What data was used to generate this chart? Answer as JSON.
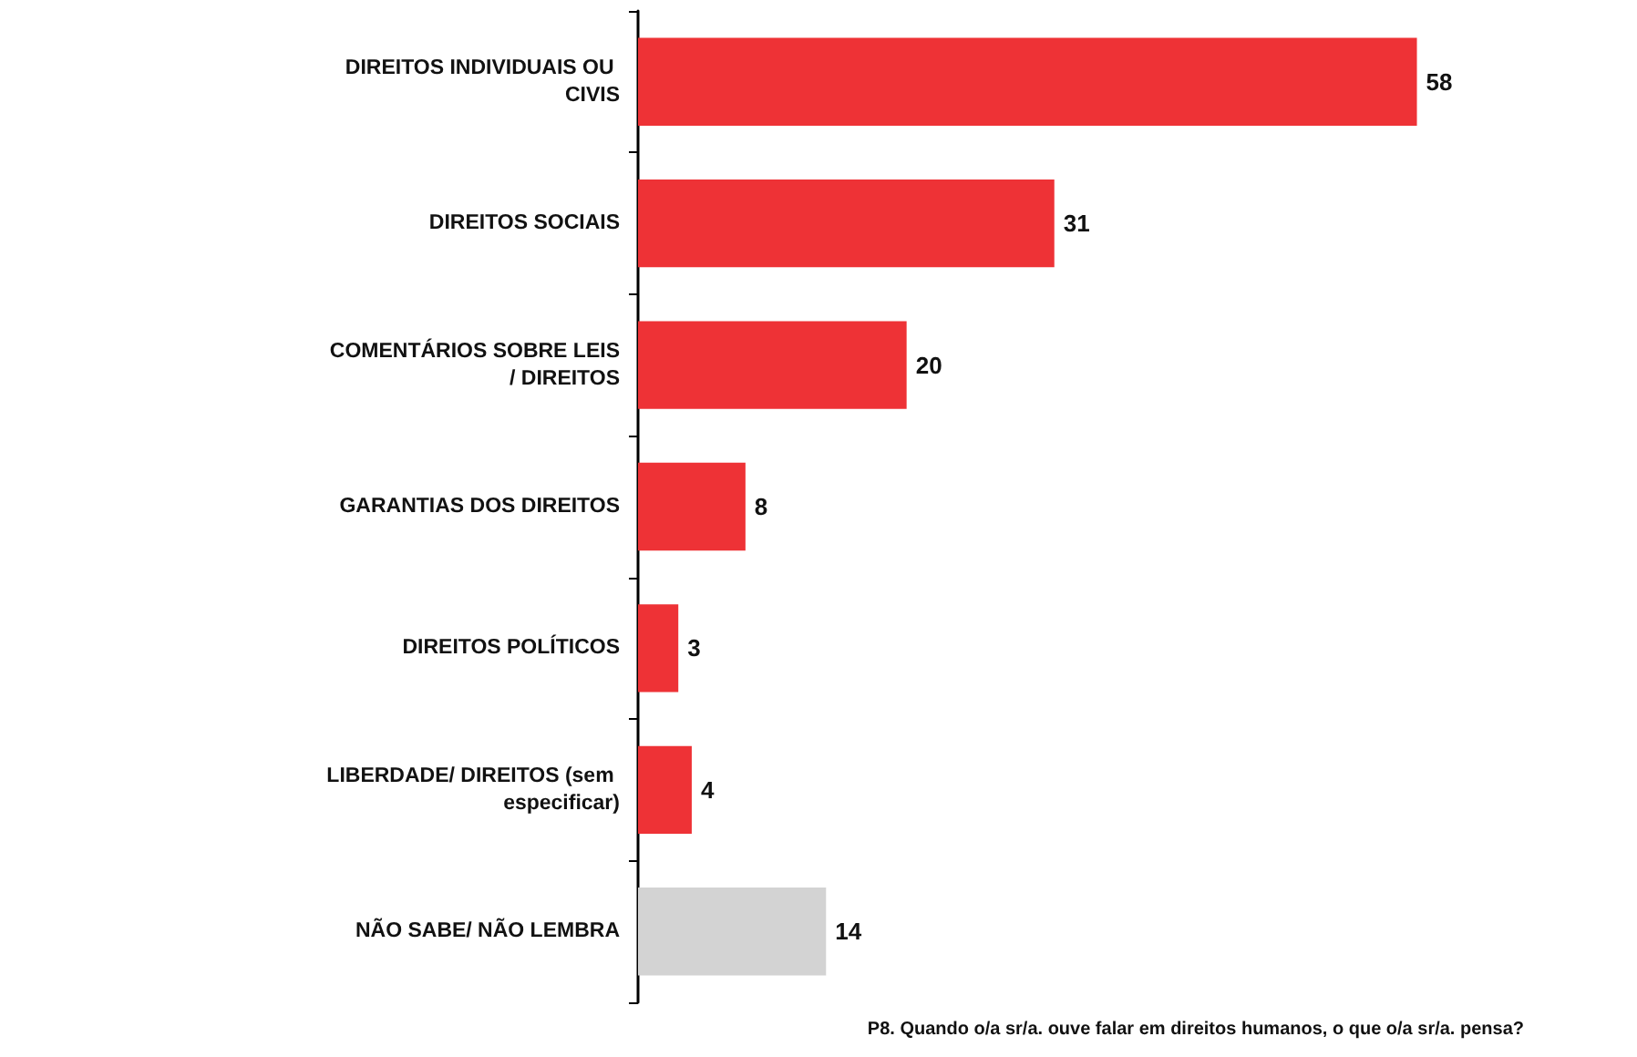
{
  "chart_data": {
    "type": "bar",
    "orientation": "horizontal",
    "categories": [
      "DIREITOS INDIVIDUAIS OU CIVIS",
      "DIREITOS SOCIAIS",
      "COMENTÁRIOS SOBRE LEIS/ DIREITOS",
      "GARANTIAS DOS DIREITOS",
      "DIREITOS POLÍTICOS",
      "LIBERDADE/ DIREITOS (sem especificar)",
      "NÃO SABE/ NÃO LEMBRA"
    ],
    "values": [
      58,
      31,
      20,
      8,
      3,
      4,
      14
    ],
    "colors": [
      "#ee3236",
      "#ee3236",
      "#ee3236",
      "#ee3236",
      "#ee3236",
      "#ee3236",
      "#d3d3d3"
    ],
    "data_labels": true,
    "grid": false,
    "annotations": [
      "P8. Quando o/a sr/a. ouve falar em direitos humanos, o que o/a sr/a. pensa?"
    ]
  }
}
